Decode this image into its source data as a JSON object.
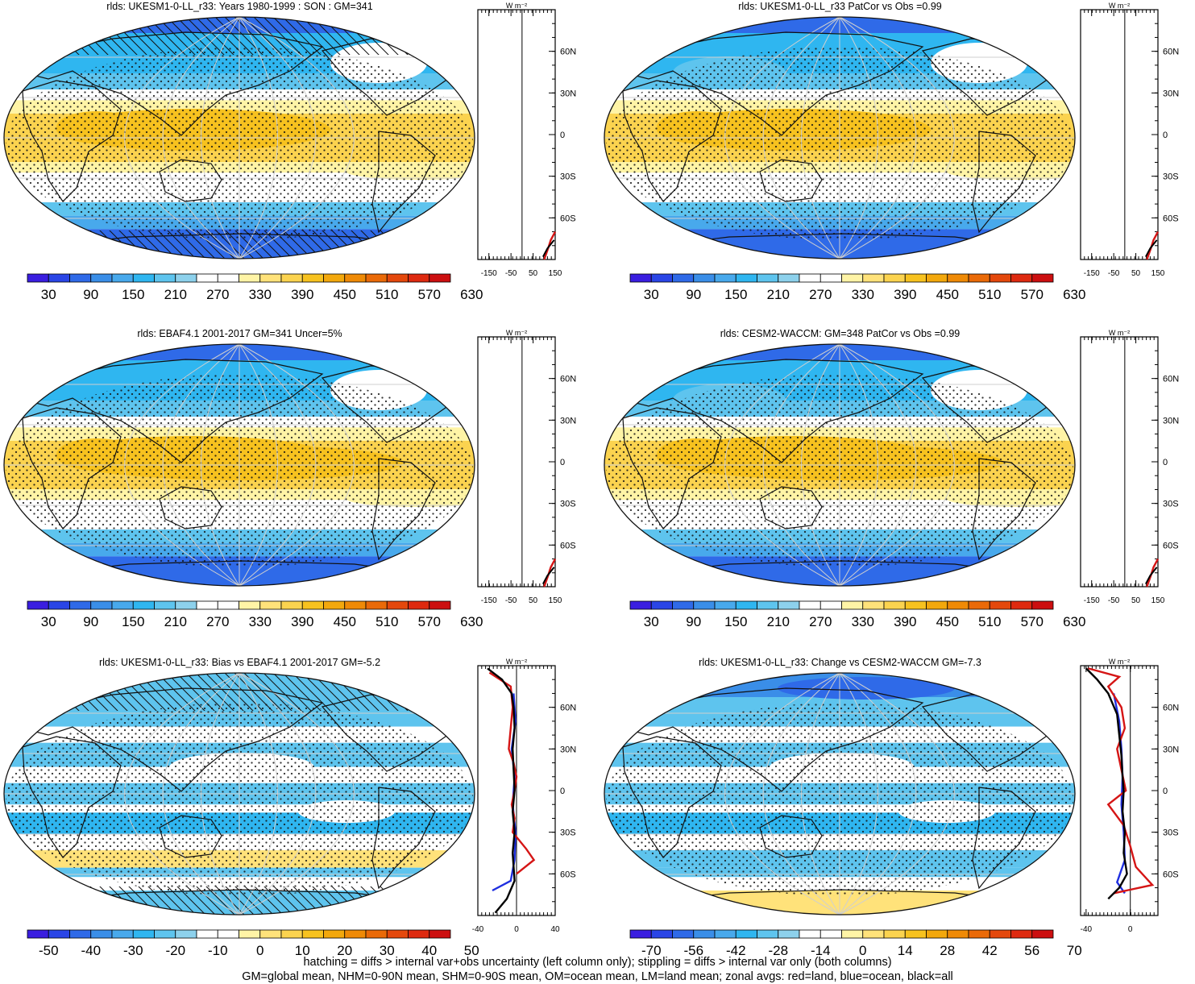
{
  "colors": {
    "abs_scale": [
      "#3a1ee0",
      "#2a45e6",
      "#2f6ae8",
      "#3a8ee8",
      "#48a9ec",
      "#2fb6f0",
      "#5ec4ee",
      "#8dd1ec",
      "#ffffff",
      "#ffffff",
      "#fff4a6",
      "#ffe27a",
      "#fbd34f",
      "#f7c21f",
      "#f3a80c",
      "#ef8a06",
      "#ea6a08",
      "#e4480c",
      "#de2a10",
      "#cc0f10"
    ],
    "diff_scale": [
      "#3a1ee0",
      "#2a45e6",
      "#2f6ae8",
      "#3a8ee8",
      "#48a9ec",
      "#2fb6f0",
      "#5ec4ee",
      "#8dd1ec",
      "#ffffff",
      "#ffffff",
      "#fff4a6",
      "#ffe27a",
      "#fbd34f",
      "#f7c21f",
      "#f3a80c",
      "#ef8a06",
      "#ea6a08",
      "#e4480c",
      "#de2a10",
      "#cc0f10"
    ],
    "land_line": "#d51515",
    "ocean_line": "#1f2fe0",
    "all_line": "#000000"
  },
  "panels": [
    {
      "title": "rlds: UKESM1-0-LL_r33: Years 1980-1999 : SON : GM=341",
      "colorbar_labels": [
        "30",
        "90",
        "150",
        "210",
        "270",
        "330",
        "390",
        "450",
        "510",
        "570",
        "630"
      ],
      "zonal_xticks": [
        "-150",
        "-50",
        "50",
        "150"
      ],
      "zonal_units": "W m⁻²",
      "lat_labels": [
        "60N",
        "30N",
        "0",
        "30S",
        "60S"
      ]
    },
    {
      "title": "rlds: UKESM1-0-LL_r33 PatCor vs Obs =0.99",
      "colorbar_labels": [
        "30",
        "90",
        "150",
        "210",
        "270",
        "330",
        "390",
        "450",
        "510",
        "570",
        "630"
      ],
      "zonal_xticks": [
        "-150",
        "-50",
        "50",
        "150"
      ],
      "zonal_units": "W m⁻²",
      "lat_labels": [
        "60N",
        "30N",
        "0",
        "30S",
        "60S"
      ]
    },
    {
      "title": "rlds: EBAF4.1 2001-2017 GM=341 Uncer=5%",
      "colorbar_labels": [
        "30",
        "90",
        "150",
        "210",
        "270",
        "330",
        "390",
        "450",
        "510",
        "570",
        "630"
      ],
      "zonal_xticks": [
        "-150",
        "-50",
        "50",
        "150"
      ],
      "zonal_units": "W m⁻²",
      "lat_labels": [
        "60N",
        "30N",
        "0",
        "30S",
        "60S"
      ]
    },
    {
      "title": "rlds: CESM2-WACCM: GM=348 PatCor vs Obs =0.99",
      "colorbar_labels": [
        "30",
        "90",
        "150",
        "210",
        "270",
        "330",
        "390",
        "450",
        "510",
        "570",
        "630"
      ],
      "zonal_xticks": [
        "-150",
        "-50",
        "50",
        "150"
      ],
      "zonal_units": "W m⁻²",
      "lat_labels": [
        "60N",
        "30N",
        "0",
        "30S",
        "60S"
      ]
    },
    {
      "title": "rlds: UKESM1-0-LL_r33: Bias vs EBAF4.1 2001-2017  GM=-5.2",
      "colorbar_labels": [
        "-50",
        "-40",
        "-30",
        "-20",
        "-10",
        "0",
        "10",
        "20",
        "30",
        "40",
        "50"
      ],
      "zonal_xticks": [
        "-40",
        "0",
        "40"
      ],
      "zonal_units": "W m⁻²",
      "lat_labels": [
        "60N",
        "30N",
        "0",
        "30S",
        "60S"
      ]
    },
    {
      "title": "rlds: UKESM1-0-LL_r33: Change vs CESM2-WACCM GM=-7.3",
      "colorbar_labels": [
        "-70",
        "-56",
        "-42",
        "-28",
        "-14",
        "0",
        "14",
        "28",
        "42",
        "56",
        "70"
      ],
      "zonal_xticks": [
        "-40",
        "0"
      ],
      "zonal_units": "W m⁻²",
      "lat_labels": [
        "60N",
        "30N",
        "0",
        "30S",
        "60S"
      ]
    }
  ],
  "footer": {
    "line1": "hatching = diffs > internal var+obs uncertainty (left column only); stippling = diffs > internal var only (both columns)",
    "line2": "GM=global mean, NHM=0-90N mean, SHM=0-90S mean, OM=ocean mean, LM=land mean; zonal avgs: red=land, blue=ocean, black=all"
  }
}
